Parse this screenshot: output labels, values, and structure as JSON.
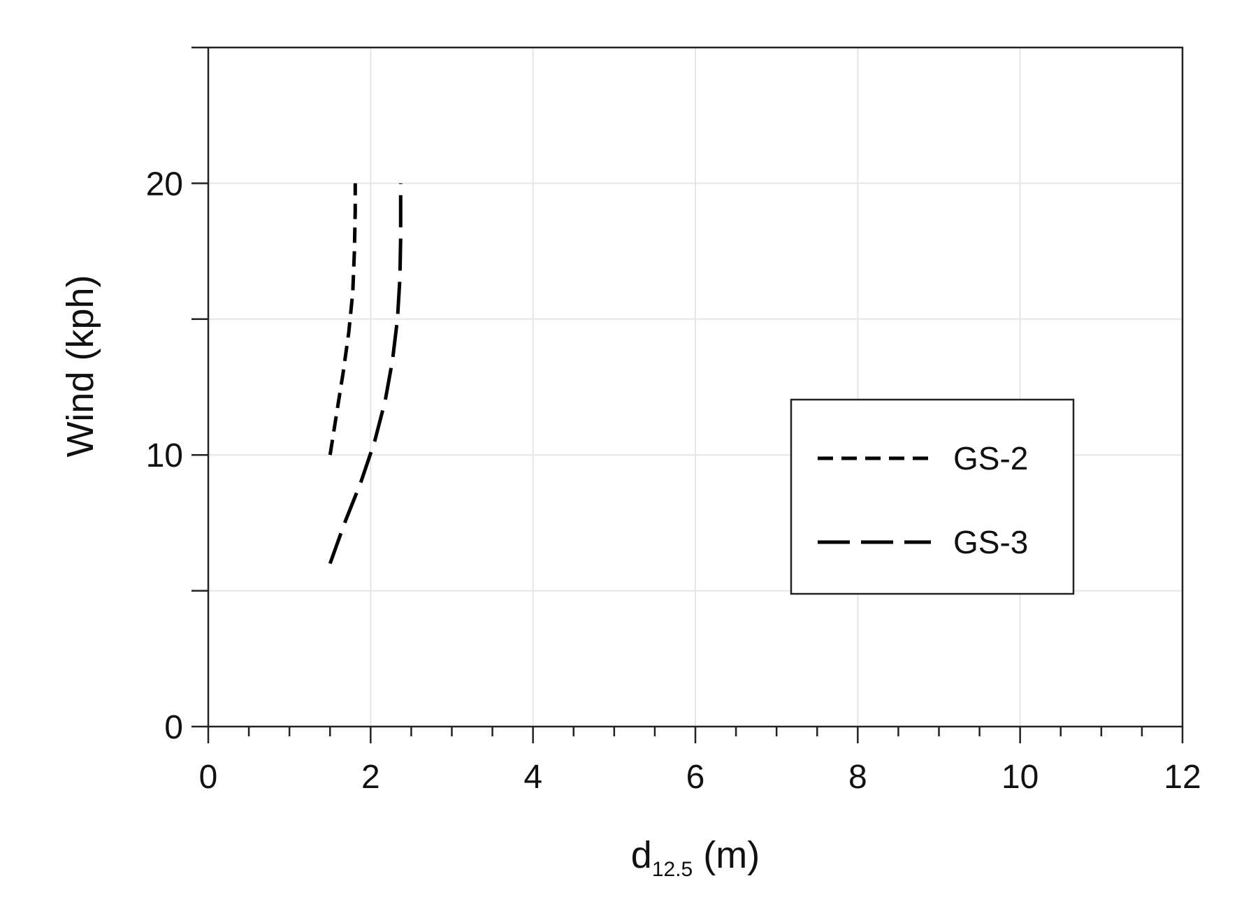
{
  "chart_data": {
    "type": "line",
    "xlabel": {
      "main": "d",
      "sub": "12.5",
      "suffix": " (m)"
    },
    "ylabel": "Wind (kph)",
    "xlim": [
      0,
      12
    ],
    "ylim": [
      0,
      25
    ],
    "x_ticks": [
      0,
      2,
      4,
      6,
      8,
      10,
      12
    ],
    "x_tick_labels": [
      "0",
      "2",
      "4",
      "6",
      "8",
      "10",
      "12"
    ],
    "x_minor_step": 0.5,
    "y_ticks": [
      0,
      10,
      20
    ],
    "y_tick_labels": [
      "0",
      "10",
      "20"
    ],
    "y_minor_step": 5,
    "grid": true,
    "legend_position": "right-middle",
    "series": [
      {
        "name": "GS-2",
        "dash": "short",
        "color": "#000000",
        "points": [
          [
            1.5,
            10
          ],
          [
            1.58,
            11.5
          ],
          [
            1.66,
            13
          ],
          [
            1.73,
            14.5
          ],
          [
            1.78,
            16
          ],
          [
            1.8,
            17.5
          ],
          [
            1.81,
            19
          ],
          [
            1.81,
            20
          ]
        ]
      },
      {
        "name": "GS-3",
        "dash": "long",
        "color": "#000000",
        "points": [
          [
            1.5,
            6
          ],
          [
            1.68,
            7.5
          ],
          [
            1.88,
            9
          ],
          [
            2.05,
            10.5
          ],
          [
            2.18,
            12
          ],
          [
            2.27,
            13.5
          ],
          [
            2.33,
            15
          ],
          [
            2.36,
            16.5
          ],
          [
            2.37,
            18
          ],
          [
            2.37,
            20
          ]
        ]
      }
    ]
  }
}
